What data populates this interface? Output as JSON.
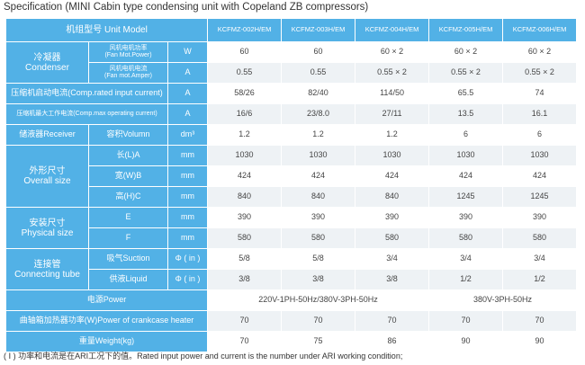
{
  "title": "Specification (MINI Cabin type condensing unit with Copeland ZB compressors)",
  "unit_model_label": "机组型号 Unit Model",
  "models": [
    "KCFMZ-002H/EM",
    "KCFMZ-003H/EM",
    "KCFMZ-004H/EM",
    "KCFMZ-005H/EM",
    "KCFMZ-006H/EM"
  ],
  "condenser": {
    "label_cn": "冷凝器",
    "label_en": "Condenser",
    "fan_power_cn": "风机电机功率",
    "fan_power_en": "(Fan Mot.Power)",
    "fan_power_unit": "W",
    "fan_power_values": [
      "60",
      "60",
      "60 × 2",
      "60 × 2",
      "60 × 2"
    ],
    "fan_current_cn": "风机电机电流",
    "fan_current_en": "(Fan mot.Amper)",
    "fan_current_unit": "A",
    "fan_current_values": [
      "0.55",
      "0.55",
      "0.55 × 2",
      "0.55 × 2",
      "0.55 × 2"
    ]
  },
  "start_current": {
    "label": "压缩机启动电流(Comp.rated input current)",
    "unit": "A",
    "values": [
      "58/26",
      "82/40",
      "114/50",
      "65.5",
      "74"
    ]
  },
  "max_current": {
    "label": "压缩机最大工作电流(Comp.max operating current)",
    "unit": "A",
    "values": [
      "16/6",
      "23/8.0",
      "27/11",
      "13.5",
      "16.1"
    ]
  },
  "receiver": {
    "label": "储液器Receiver",
    "sub": "容积Volumn",
    "unit": "dm³",
    "values": [
      "1.2",
      "1.2",
      "1.2",
      "6",
      "6"
    ]
  },
  "dimensions": {
    "label_cn": "外形尺寸",
    "label_en": "Overall size",
    "unit": "mm",
    "rows": [
      {
        "label": "长(L)A",
        "values": [
          "1030",
          "1030",
          "1030",
          "1030",
          "1030"
        ]
      },
      {
        "label": "宽(W)B",
        "values": [
          "424",
          "424",
          "424",
          "424",
          "424"
        ]
      },
      {
        "label": "高(H)C",
        "values": [
          "840",
          "840",
          "840",
          "1245",
          "1245"
        ]
      }
    ]
  },
  "installation": {
    "label_cn": "安装尺寸",
    "label_en": "Physical size",
    "unit": "mm",
    "rows": [
      {
        "label": "E",
        "values": [
          "390",
          "390",
          "390",
          "390",
          "390"
        ]
      },
      {
        "label": "F",
        "values": [
          "580",
          "580",
          "580",
          "580",
          "580"
        ]
      }
    ]
  },
  "connecting": {
    "label_cn": "连接管",
    "label_en": "Connecting tube",
    "unit": "Φ ( in )",
    "rows": [
      {
        "label": "吸气Suction",
        "values": [
          "5/8",
          "5/8",
          "3/4",
          "3/4",
          "3/4"
        ]
      },
      {
        "label": "供液Liquid",
        "values": [
          "3/8",
          "3/8",
          "3/8",
          "1/2",
          "1/2"
        ]
      }
    ]
  },
  "power": {
    "label": "电源Power",
    "value_a": "220V-1PH-50Hz/380V-3PH-50Hz",
    "value_b": "380V-3PH-50Hz"
  },
  "crankcase": {
    "label": "曲轴箱加热器功率(W)Power of crankcase heater",
    "values": [
      "70",
      "70",
      "70",
      "70",
      "70"
    ]
  },
  "weight": {
    "label": "重量Weight(kg)",
    "values": [
      "70",
      "75",
      "86",
      "90",
      "90"
    ]
  },
  "footnote": "( Ⅰ ) 功率和电流是在ARI工况下的值。Rated input power and current is the number under ARI working condition;"
}
